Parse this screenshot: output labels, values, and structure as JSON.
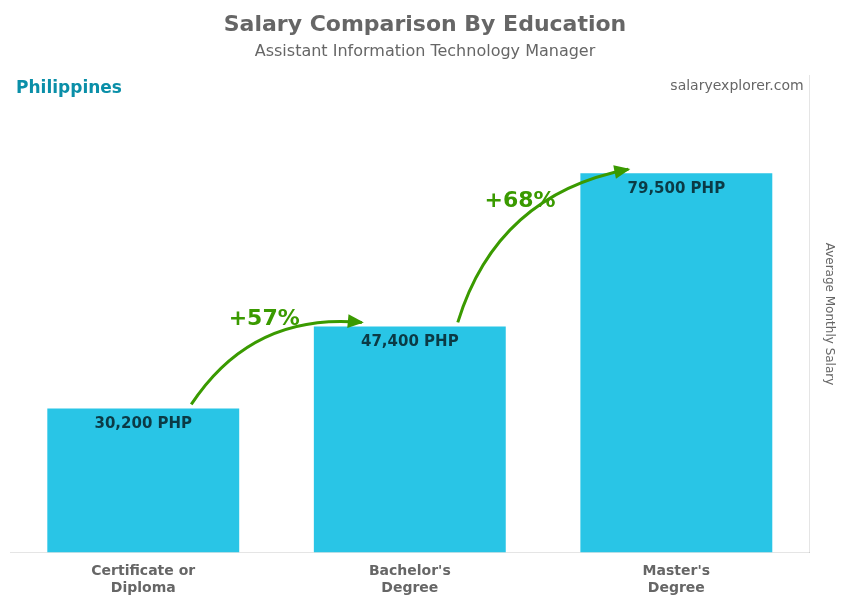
{
  "chart_data": {
    "type": "bar",
    "title": "Salary Comparison By Education",
    "subtitle": "Assistant Information Technology Manager",
    "ylabel": "Average Monthly Salary",
    "categories": [
      "Certificate or\nDiploma",
      "Bachelor's\nDegree",
      "Master's\nDegree"
    ],
    "values": [
      30200,
      47400,
      79500
    ],
    "value_labels": [
      "30,200 PHP",
      "47,400 PHP",
      "79,500 PHP"
    ],
    "data_labels": true,
    "color": "#29c5e6",
    "ylim": [
      0,
      100000
    ],
    "grid": false,
    "tick_labels": "x",
    "annotations": [
      {
        "text": "Philippines"
      },
      {
        "text": "salaryexplorer.com"
      },
      {
        "text": "+57%",
        "from": "Certificate or\nDiploma",
        "to": "Bachelor's\nDegree"
      },
      {
        "text": "+68%",
        "from": "Bachelor's\nDegree",
        "to": "Master's\nDegree"
      }
    ]
  }
}
